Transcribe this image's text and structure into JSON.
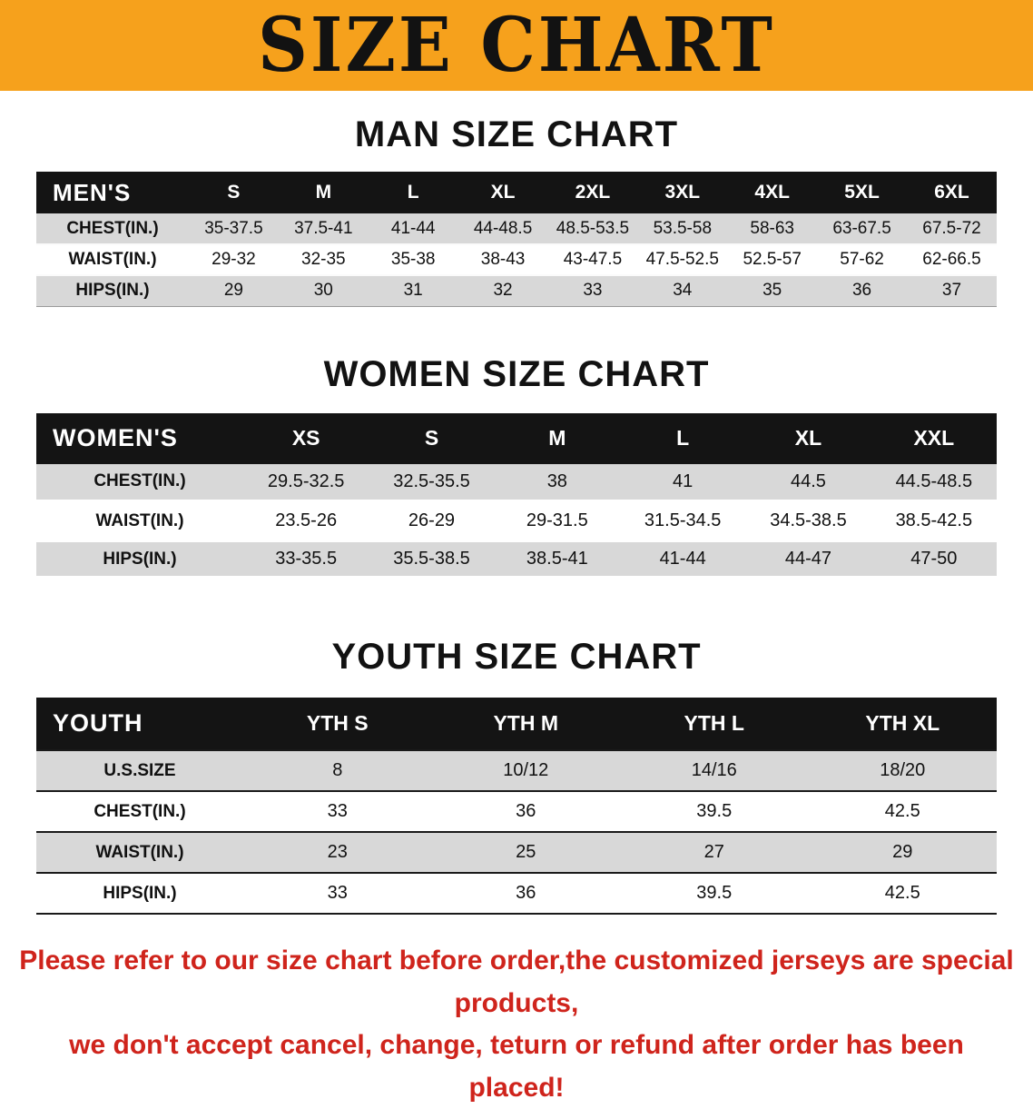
{
  "banner": {
    "title": "SIZE CHART"
  },
  "sections": [
    {
      "heading": "MAN SIZE CHART",
      "table": {
        "header_label": "MEN'S",
        "columns": [
          "S",
          "M",
          "L",
          "XL",
          "2XL",
          "3XL",
          "4XL",
          "5XL",
          "6XL"
        ],
        "rows": [
          {
            "label": "CHEST(IN.)",
            "values": [
              "35-37.5",
              "37.5-41",
              "41-44",
              "44-48.5",
              "48.5-53.5",
              "53.5-58",
              "58-63",
              "63-67.5",
              "67.5-72"
            ]
          },
          {
            "label": "WAIST(IN.)",
            "values": [
              "29-32",
              "32-35",
              "35-38",
              "38-43",
              "43-47.5",
              "47.5-52.5",
              "52.5-57",
              "57-62",
              "62-66.5"
            ]
          },
          {
            "label": "HIPS(IN.)",
            "values": [
              "29",
              "30",
              "31",
              "32",
              "33",
              "34",
              "35",
              "36",
              "37"
            ]
          }
        ]
      }
    },
    {
      "heading": "WOMEN SIZE CHART",
      "table": {
        "header_label": "WOMEN'S",
        "columns": [
          "XS",
          "S",
          "M",
          "L",
          "XL",
          "XXL"
        ],
        "rows": [
          {
            "label": "CHEST(IN.)",
            "values": [
              "29.5-32.5",
              "32.5-35.5",
              "38",
              "41",
              "44.5",
              "44.5-48.5"
            ]
          },
          {
            "label": "WAIST(IN.)",
            "values": [
              "23.5-26",
              "26-29",
              "29-31.5",
              "31.5-34.5",
              "34.5-38.5",
              "38.5-42.5"
            ]
          },
          {
            "label": "HIPS(IN.)",
            "values": [
              "33-35.5",
              "35.5-38.5",
              "38.5-41",
              "41-44",
              "44-47",
              "47-50"
            ]
          }
        ]
      }
    },
    {
      "heading": "YOUTH SIZE CHART",
      "table": {
        "header_label": "YOUTH",
        "columns": [
          "YTH S",
          "YTH M",
          "YTH L",
          "YTH XL"
        ],
        "rows": [
          {
            "label": "U.S.SIZE",
            "values": [
              "8",
              "10/12",
              "14/16",
              "18/20"
            ]
          },
          {
            "label": "CHEST(IN.)",
            "values": [
              "33",
              "36",
              "39.5",
              "42.5"
            ]
          },
          {
            "label": "WAIST(IN.)",
            "values": [
              "23",
              "25",
              "27",
              "29"
            ]
          },
          {
            "label": "HIPS(IN.)",
            "values": [
              "33",
              "36",
              "39.5",
              "42.5"
            ]
          }
        ]
      }
    }
  ],
  "footer": {
    "lines": [
      "Please refer to our size chart before order,the customized jerseys are special products,",
      "we don't accept cancel, change, teturn or refund after order has been placed!"
    ]
  },
  "colors": {
    "banner_background": "#f6a11c",
    "table_header_background": "#141414",
    "row_stripe_gray": "#d8d8d8",
    "footer_text_red": "#cf241c"
  }
}
